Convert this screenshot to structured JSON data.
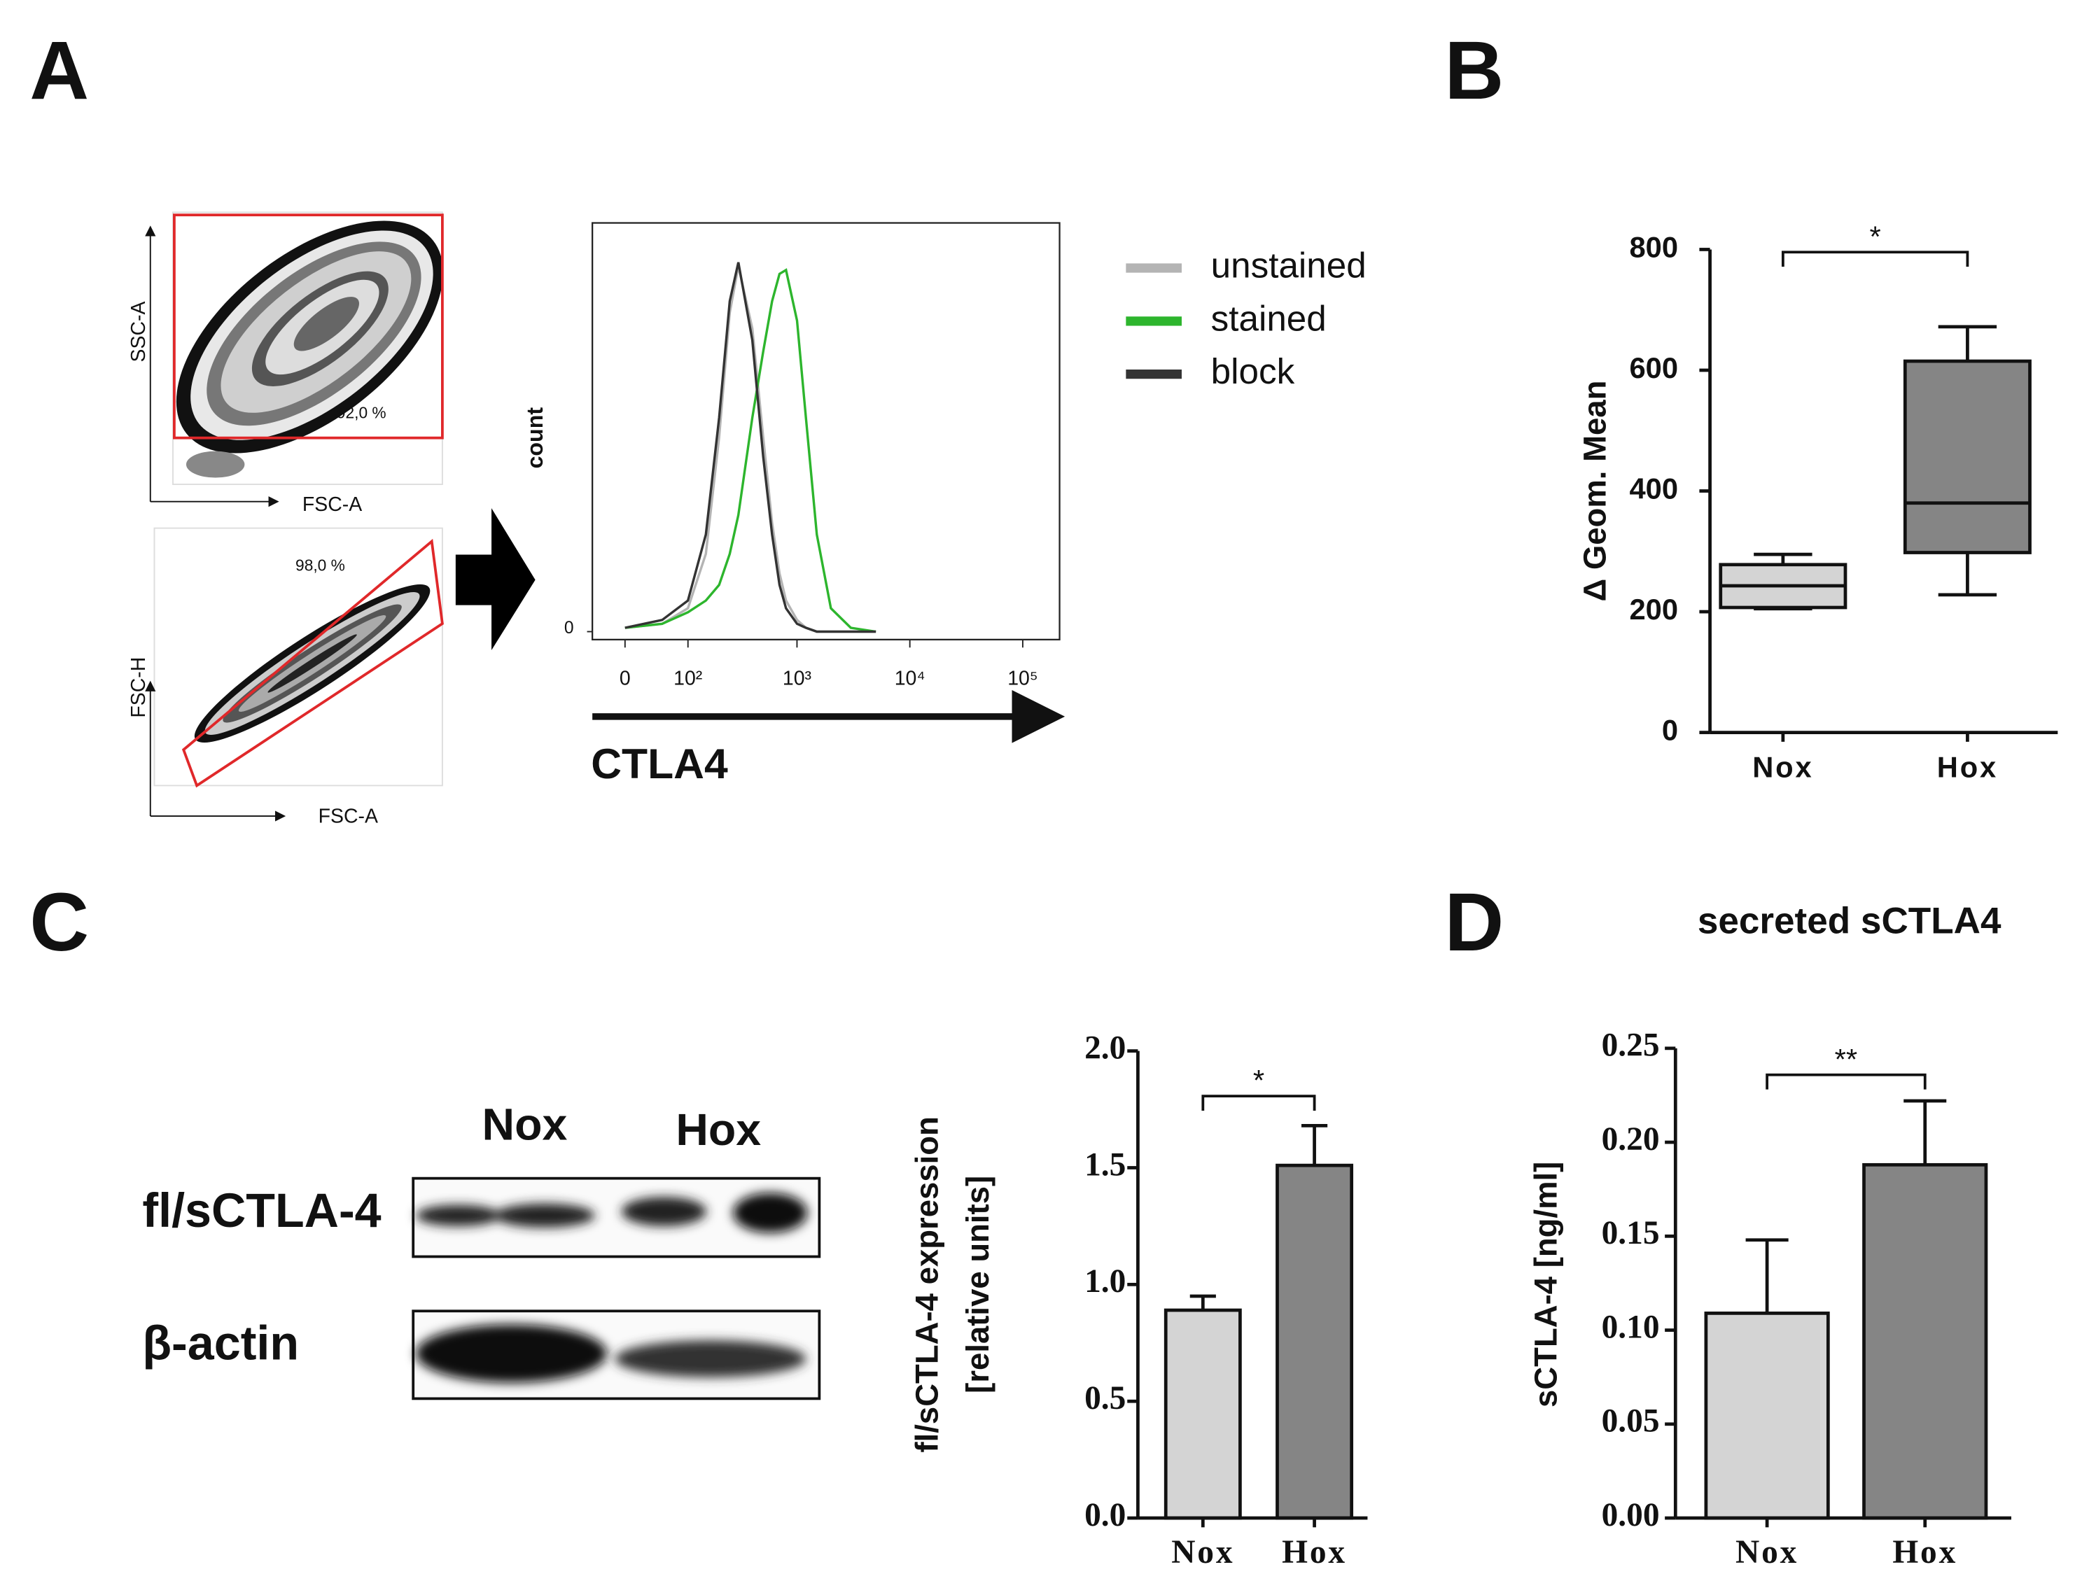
{
  "panel_labels": [
    "A",
    "B",
    "C",
    "D"
  ],
  "gating": [
    {
      "y_label": "SSC-A",
      "x_label": "FSC-A",
      "gate": "92,0 %"
    },
    {
      "y_label": "FSC-H",
      "x_label": "FSC-A",
      "gate": "98,0 %"
    }
  ],
  "western_blot": {
    "lanes": [
      "Nox",
      "Hox"
    ],
    "rows": [
      "fl/sCTLA-4",
      "β-actin"
    ]
  },
  "chart_data": [
    {
      "type": "line",
      "x_scale": "asinh",
      "x_label": "CTLA4",
      "y_label": "count",
      "x": [
        0,
        50,
        100,
        150,
        200,
        250,
        300,
        400,
        500,
        600,
        700,
        800,
        1000,
        1200,
        1500,
        2000,
        3000,
        5000
      ],
      "series": [
        {
          "name": "unstained",
          "color": "#b4b4b4",
          "values": [
            1,
            2,
            6,
            20,
            50,
            82,
            94,
            78,
            50,
            28,
            15,
            8,
            3,
            1,
            0,
            0,
            0,
            0
          ]
        },
        {
          "name": "stained",
          "color": "#2db52d",
          "values": [
            1,
            2,
            5,
            8,
            12,
            20,
            30,
            55,
            72,
            85,
            92,
            93,
            80,
            55,
            25,
            6,
            1,
            0
          ]
        },
        {
          "name": "block",
          "color": "#333333",
          "values": [
            1,
            3,
            8,
            25,
            55,
            85,
            95,
            75,
            45,
            25,
            12,
            6,
            2,
            1,
            0,
            0,
            0,
            0
          ]
        }
      ],
      "xlim": [
        -43,
        212000
      ],
      "xticks": [
        0,
        {
          "value": 100,
          "label": "10²"
        },
        {
          "value": 1000,
          "label": "10³"
        },
        {
          "value": 10000,
          "label": "10⁴"
        },
        {
          "value": 100000,
          "label": "10⁵"
        }
      ],
      "ylim": [
        0,
        100
      ],
      "yticks": [
        0
      ]
    },
    {
      "type": "box",
      "y_label": "Δ Geom. Mean",
      "categories": [
        "Nox",
        "Hox"
      ],
      "colors": [
        "#d4d4d4",
        "#858585"
      ],
      "boxes": [
        {
          "min": 205,
          "q1": 207,
          "median": 243,
          "q3": 278,
          "max": 295
        },
        {
          "min": 228,
          "q1": 298,
          "median": 380,
          "q3": 615,
          "max": 672
        }
      ],
      "ylim": [
        0,
        800
      ],
      "yticks": [
        0,
        200,
        400,
        600,
        800
      ],
      "significance": "*"
    },
    {
      "type": "bar",
      "y_label": [
        "fl/sCTLA-4 expression",
        "[relative units]"
      ],
      "categories": [
        "Nox",
        "Hox"
      ],
      "colors": [
        "#d4d4d4",
        "#858585"
      ],
      "values": [
        0.89,
        1.51
      ],
      "errors": [
        0.06,
        0.17
      ],
      "ylim": [
        0,
        2
      ],
      "yticks": [
        {
          "value": 0,
          "label": "0.0"
        },
        {
          "value": 0.5,
          "label": "0.5"
        },
        {
          "value": 1,
          "label": "1.0"
        },
        {
          "value": 1.5,
          "label": "1.5"
        },
        {
          "value": 2,
          "label": "2.0"
        }
      ],
      "significance": "*"
    },
    {
      "type": "bar",
      "title": "secreted sCTLA4",
      "y_label": [
        "sCTLA-4 [ng/ml]"
      ],
      "categories": [
        "Nox",
        "Hox"
      ],
      "colors": [
        "#d4d4d4",
        "#858585"
      ],
      "values": [
        0.109,
        0.188
      ],
      "errors": [
        0.039,
        0.034
      ],
      "ylim": [
        0,
        0.25
      ],
      "yticks": [
        {
          "value": 0,
          "label": "0.00"
        },
        {
          "value": 0.05,
          "label": "0.05"
        },
        {
          "value": 0.1,
          "label": "0.10"
        },
        {
          "value": 0.15,
          "label": "0.15"
        },
        {
          "value": 0.2,
          "label": "0.20"
        },
        {
          "value": 0.25,
          "label": "0.25"
        }
      ],
      "significance": "**"
    }
  ]
}
